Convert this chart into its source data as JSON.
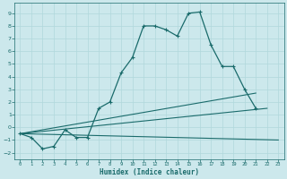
{
  "xlabel": "Humidex (Indice chaleur)",
  "background_color": "#cce8ec",
  "line_color": "#1a6b6b",
  "grid_color": "#b0d8dc",
  "xlim": [
    -0.5,
    23.5
  ],
  "ylim": [
    -2.5,
    9.8
  ],
  "xticks": [
    0,
    1,
    2,
    3,
    4,
    5,
    6,
    7,
    8,
    9,
    10,
    11,
    12,
    13,
    14,
    15,
    16,
    17,
    18,
    19,
    20,
    21,
    22,
    23
  ],
  "yticks": [
    -2,
    -1,
    0,
    1,
    2,
    3,
    4,
    5,
    6,
    7,
    8,
    9
  ],
  "series_main": {
    "x": [
      0,
      1,
      2,
      3,
      4,
      5,
      6,
      7,
      8,
      9,
      10,
      11,
      12,
      13,
      14,
      15,
      16,
      17,
      18,
      19,
      20,
      21
    ],
    "y": [
      -0.5,
      -0.8,
      -1.7,
      -1.5,
      -0.2,
      -0.8,
      -0.8,
      1.5,
      2.0,
      4.3,
      5.5,
      8.0,
      8.0,
      7.7,
      7.2,
      9.0,
      9.1,
      6.5,
      4.8,
      4.8,
      3.0,
      1.5
    ]
  },
  "series_flat": {
    "x": [
      0,
      23
    ],
    "y": [
      -0.5,
      -1.0
    ]
  },
  "series_diag1": {
    "x": [
      0,
      21
    ],
    "y": [
      -0.5,
      2.7
    ]
  },
  "series_diag2": {
    "x": [
      0,
      22
    ],
    "y": [
      -0.5,
      1.5
    ]
  }
}
